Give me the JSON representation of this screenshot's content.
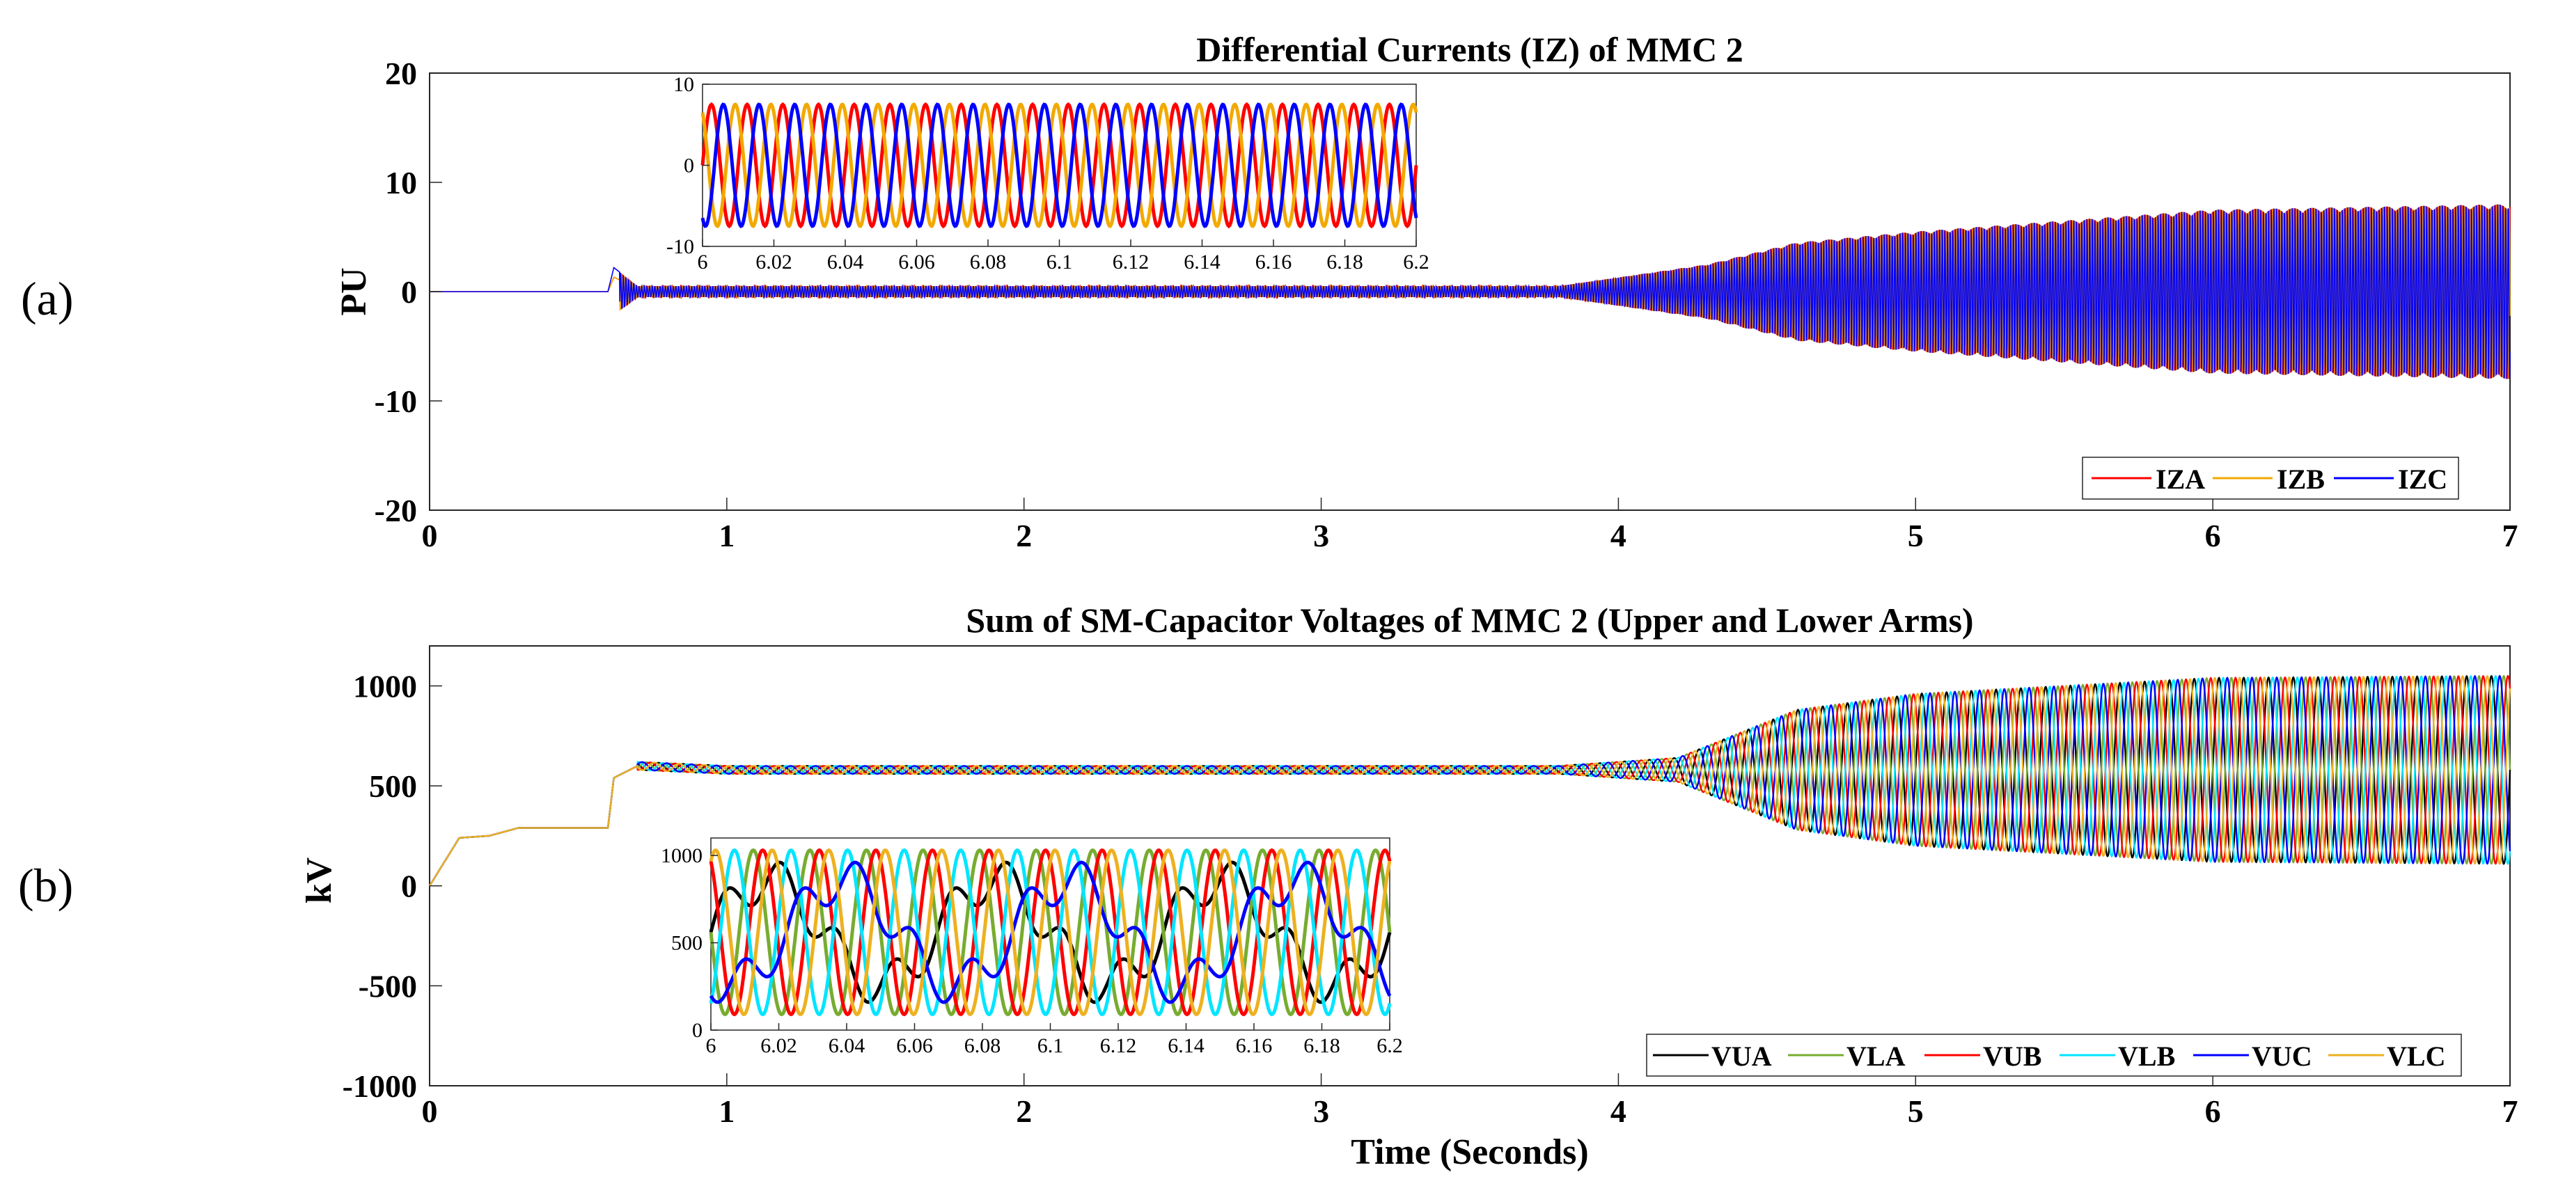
{
  "panel_labels": {
    "a": "(a)",
    "b": "(b)"
  },
  "chart_data": [
    {
      "type": "line",
      "title": "Differential Currents (IZ) of MMC 2",
      "xlabel": "",
      "ylabel": "PU",
      "xlim": [
        0,
        7
      ],
      "ylim": [
        -20,
        20
      ],
      "xticks": [
        "0",
        "1",
        "2",
        "3",
        "4",
        "5",
        "6",
        "7"
      ],
      "yticks": [
        "20",
        "10",
        "0",
        "-10",
        "-20"
      ],
      "legend_location": "bottom-right",
      "series": [
        {
          "name": "IZA",
          "color": "#ff0000",
          "phase_deg": 0
        },
        {
          "name": "IZB",
          "color": "#f2a900",
          "phase_deg": 120
        },
        {
          "name": "IZC",
          "color": "#0000ff",
          "phase_deg": 240
        }
      ],
      "envelope": {
        "description_points_t": [
          0,
          0.6,
          0.62,
          0.7,
          3.8,
          4.3,
          4.6,
          5.0,
          5.5,
          6.0,
          7.0
        ],
        "amplitude_pu": [
          0,
          0,
          2.2,
          0.5,
          0.5,
          2.5,
          4.5,
          5.5,
          6.5,
          7.5,
          8.0
        ]
      },
      "inset": {
        "xlim": [
          6,
          6.2
        ],
        "ylim": [
          -10,
          10
        ],
        "xticks": [
          "6",
          "6.02",
          "6.04",
          "6.06",
          "6.08",
          "6.1",
          "6.12",
          "6.14",
          "6.16",
          "6.18",
          "6.2"
        ],
        "yticks": [
          "10",
          "0",
          "-10"
        ],
        "amplitude_pu": 7.5,
        "cycles": 20
      }
    },
    {
      "type": "line",
      "title": "Sum of SM-Capacitor Voltages of MMC 2 (Upper and Lower Arms)",
      "xlabel": "Time (Seconds)",
      "ylabel": "kV",
      "xlim": [
        0,
        7
      ],
      "ylim": [
        -1000,
        1200
      ],
      "xticks": [
        "0",
        "1",
        "2",
        "3",
        "4",
        "5",
        "6",
        "7"
      ],
      "yticks": [
        "1000",
        "500",
        "0",
        "-500",
        "-1000"
      ],
      "legend_location": "bottom-right",
      "series": [
        {
          "name": "VUA",
          "color": "#000000",
          "phase_deg": 0
        },
        {
          "name": "VLA",
          "color": "#77ac30",
          "phase_deg": 180
        },
        {
          "name": "VUB",
          "color": "#ff0000",
          "phase_deg": 120
        },
        {
          "name": "VLB",
          "color": "#00e5ff",
          "phase_deg": 300
        },
        {
          "name": "VUC",
          "color": "#0000ff",
          "phase_deg": 240
        },
        {
          "name": "VLC",
          "color": "#edb120",
          "phase_deg": 60
        }
      ],
      "startup": {
        "t": [
          0,
          0.05,
          0.1,
          0.2,
          0.3,
          0.6,
          0.62,
          0.7,
          1.0
        ],
        "kv": [
          0,
          120,
          240,
          250,
          290,
          290,
          540,
          600,
          580
        ]
      },
      "mean_kv": 580,
      "envelope": {
        "description_points_t": [
          0,
          0.7,
          3.8,
          4.2,
          4.6,
          5.0,
          5.5,
          6.0,
          7.0
        ],
        "amplitude_kv": [
          0,
          20,
          20,
          60,
          300,
          380,
          420,
          460,
          470
        ]
      },
      "inset": {
        "xlim": [
          6,
          6.2
        ],
        "ylim": [
          0,
          1100
        ],
        "xticks": [
          "6",
          "6.02",
          "6.04",
          "6.06",
          "6.08",
          "6.1",
          "6.12",
          "6.14",
          "6.16",
          "6.18",
          "6.2"
        ],
        "yticks": [
          "1000",
          "500",
          "0"
        ],
        "mean_kv": 560,
        "amplitude_kv": 470,
        "cycles": 12
      }
    }
  ]
}
